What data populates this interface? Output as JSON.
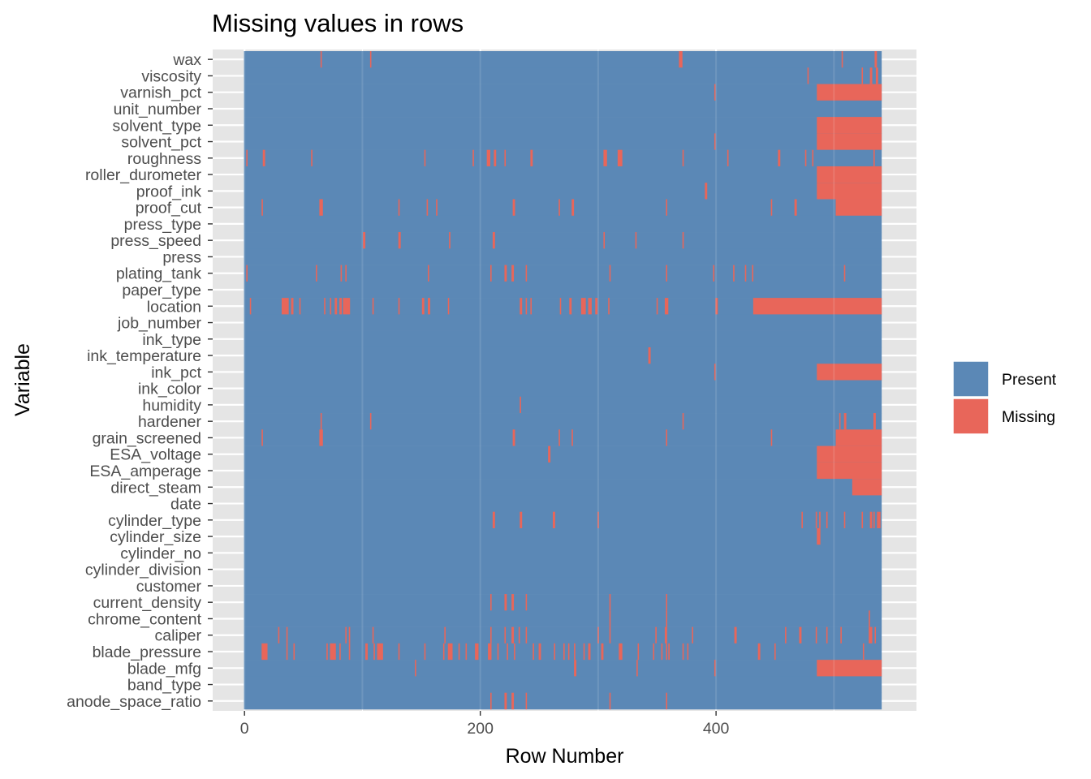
{
  "chart_data": {
    "type": "heatmap",
    "title": "Missing values in rows",
    "xlabel": "Row Number",
    "ylabel": "Variable",
    "xlim": [
      -27,
      570
    ],
    "x_ticks": [
      "0",
      "200",
      "400"
    ],
    "x_tick_values": [
      0,
      200,
      400
    ],
    "n_rows": 541,
    "grid": true,
    "legend_position": "right",
    "legend": [
      {
        "label": "Present",
        "color": "#5b88b6"
      },
      {
        "label": "Missing",
        "color": "#e8665a"
      }
    ],
    "colors": {
      "present": "#5b88b6",
      "missing": "#e8665a",
      "panel_bg": "#e5e5e5",
      "gridline": "#ffffff"
    },
    "variables": [
      "wax",
      "viscosity",
      "varnish_pct",
      "unit_number",
      "solvent_type",
      "solvent_pct",
      "roughness",
      "roller_durometer",
      "proof_ink",
      "proof_cut",
      "press_type",
      "press_speed",
      "press",
      "plating_tank",
      "paper_type",
      "location",
      "job_number",
      "ink_type",
      "ink_temperature",
      "ink_pct",
      "ink_color",
      "humidity",
      "hardener",
      "grain_screened",
      "ESA_voltage",
      "ESA_amperage",
      "direct_steam",
      "date",
      "cylinder_type",
      "cylinder_size",
      "cylinder_no",
      "cylinder_division",
      "customer",
      "current_density",
      "chrome_content",
      "caliper",
      "blade_pressure",
      "blade_mfg",
      "band_type",
      "anode_space_ratio"
    ],
    "missing": {
      "wax": [
        [
          65,
          65
        ],
        [
          107,
          107
        ],
        [
          369,
          371
        ],
        [
          507,
          507
        ],
        [
          535,
          536
        ]
      ],
      "viscosity": [
        [
          478,
          478
        ],
        [
          524,
          524
        ],
        [
          531,
          532
        ],
        [
          536,
          537
        ]
      ],
      "varnish_pct": [
        [
          399,
          399
        ],
        [
          486,
          540
        ]
      ],
      "unit_number": [],
      "solvent_type": [
        [
          486,
          540
        ]
      ],
      "solvent_pct": [
        [
          399,
          399
        ],
        [
          486,
          540
        ]
      ],
      "roughness": [
        [
          2,
          2
        ],
        [
          16,
          17
        ],
        [
          57,
          57
        ],
        [
          153,
          153
        ],
        [
          194,
          194
        ],
        [
          206,
          208
        ],
        [
          212,
          213
        ],
        [
          221,
          221
        ],
        [
          243,
          244
        ],
        [
          305,
          307
        ],
        [
          317,
          320
        ],
        [
          372,
          372
        ],
        [
          410,
          410
        ],
        [
          453,
          454
        ],
        [
          476,
          476
        ],
        [
          482,
          482
        ],
        [
          534,
          534
        ]
      ],
      "roller_durometer": [
        [
          486,
          540
        ]
      ],
      "proof_ink": [
        [
          391,
          392
        ],
        [
          486,
          540
        ]
      ],
      "proof_cut": [
        [
          15,
          15
        ],
        [
          64,
          66
        ],
        [
          131,
          131
        ],
        [
          155,
          155
        ],
        [
          163,
          163
        ],
        [
          228,
          229
        ],
        [
          267,
          267
        ],
        [
          278,
          279
        ],
        [
          358,
          358
        ],
        [
          447,
          447
        ],
        [
          467,
          468
        ],
        [
          502,
          540
        ]
      ],
      "press_type": [],
      "press_speed": [
        [
          101,
          102
        ],
        [
          131,
          132
        ],
        [
          174,
          174
        ],
        [
          211,
          212
        ],
        [
          305,
          305
        ],
        [
          332,
          332
        ],
        [
          372,
          372
        ]
      ],
      "press": [],
      "plating_tank": [
        [
          2,
          2
        ],
        [
          61,
          61
        ],
        [
          82,
          82
        ],
        [
          86,
          86
        ],
        [
          156,
          156
        ],
        [
          209,
          209
        ],
        [
          221,
          222
        ],
        [
          227,
          228
        ],
        [
          239,
          239
        ],
        [
          310,
          310
        ],
        [
          358,
          358
        ],
        [
          398,
          398
        ],
        [
          415,
          415
        ],
        [
          425,
          425
        ],
        [
          431,
          431
        ],
        [
          509,
          509
        ]
      ],
      "paper_type": [],
      "location": [
        [
          5,
          5
        ],
        [
          32,
          37
        ],
        [
          40,
          41
        ],
        [
          47,
          47
        ],
        [
          68,
          68
        ],
        [
          73,
          73
        ],
        [
          77,
          78
        ],
        [
          81,
          82
        ],
        [
          84,
          89
        ],
        [
          109,
          109
        ],
        [
          131,
          131
        ],
        [
          151,
          152
        ],
        [
          156,
          157
        ],
        [
          173,
          173
        ],
        [
          234,
          235
        ],
        [
          239,
          239
        ],
        [
          243,
          243
        ],
        [
          268,
          268
        ],
        [
          276,
          277
        ],
        [
          286,
          289
        ],
        [
          292,
          294
        ],
        [
          298,
          299
        ],
        [
          309,
          309
        ],
        [
          350,
          350
        ],
        [
          357,
          359
        ],
        [
          400,
          401
        ],
        [
          432,
          540
        ]
      ],
      "job_number": [],
      "ink_type": [],
      "ink_temperature": [
        [
          343,
          344
        ]
      ],
      "ink_pct": [
        [
          399,
          399
        ],
        [
          486,
          540
        ]
      ],
      "ink_color": [],
      "humidity": [
        [
          234,
          234
        ]
      ],
      "hardener": [
        [
          65,
          65
        ],
        [
          107,
          107
        ],
        [
          372,
          372
        ],
        [
          505,
          505
        ],
        [
          509,
          510
        ],
        [
          534,
          535
        ]
      ],
      "grain_screened": [
        [
          15,
          15
        ],
        [
          64,
          66
        ],
        [
          228,
          229
        ],
        [
          267,
          267
        ],
        [
          278,
          278
        ],
        [
          358,
          358
        ],
        [
          447,
          447
        ],
        [
          502,
          540
        ]
      ],
      "ESA_voltage": [
        [
          258,
          259
        ],
        [
          486,
          540
        ]
      ],
      "ESA_amperage": [
        [
          486,
          540
        ]
      ],
      "direct_steam": [
        [
          516,
          540
        ]
      ],
      "date": [],
      "cylinder_type": [
        [
          211,
          212
        ],
        [
          234,
          235
        ],
        [
          262,
          263
        ],
        [
          300,
          300
        ],
        [
          473,
          473
        ],
        [
          485,
          485
        ],
        [
          488,
          488
        ],
        [
          494,
          494
        ],
        [
          509,
          509
        ],
        [
          524,
          524
        ],
        [
          531,
          532
        ],
        [
          534,
          534
        ],
        [
          537,
          539
        ]
      ],
      "cylinder_size": [
        [
          486,
          488
        ]
      ],
      "cylinder_no": [],
      "cylinder_division": [],
      "customer": [],
      "current_density": [
        [
          209,
          209
        ],
        [
          221,
          222
        ],
        [
          227,
          228
        ],
        [
          239,
          239
        ],
        [
          310,
          310
        ],
        [
          358,
          358
        ]
      ],
      "chrome_content": [
        [
          310,
          310
        ],
        [
          358,
          358
        ],
        [
          530,
          530
        ]
      ],
      "caliper": [
        [
          29,
          29
        ],
        [
          36,
          36
        ],
        [
          86,
          86
        ],
        [
          89,
          89
        ],
        [
          109,
          109
        ],
        [
          170,
          170
        ],
        [
          209,
          209
        ],
        [
          221,
          221
        ],
        [
          227,
          228
        ],
        [
          233,
          233
        ],
        [
          239,
          239
        ],
        [
          300,
          300
        ],
        [
          310,
          310
        ],
        [
          349,
          349
        ],
        [
          357,
          358
        ],
        [
          380,
          380
        ],
        [
          416,
          417
        ],
        [
          459,
          459
        ],
        [
          471,
          472
        ],
        [
          485,
          485
        ],
        [
          494,
          494
        ],
        [
          506,
          506
        ],
        [
          530,
          532
        ],
        [
          535,
          535
        ]
      ],
      "blade_pressure": [
        [
          15,
          19
        ],
        [
          36,
          36
        ],
        [
          42,
          42
        ],
        [
          70,
          70
        ],
        [
          73,
          77
        ],
        [
          81,
          81
        ],
        [
          89,
          89
        ],
        [
          103,
          104
        ],
        [
          110,
          110
        ],
        [
          113,
          117
        ],
        [
          131,
          131
        ],
        [
          153,
          153
        ],
        [
          169,
          169
        ],
        [
          173,
          176
        ],
        [
          182,
          182
        ],
        [
          188,
          188
        ],
        [
          196,
          198
        ],
        [
          207,
          209
        ],
        [
          215,
          215
        ],
        [
          223,
          223
        ],
        [
          229,
          229
        ],
        [
          245,
          245
        ],
        [
          250,
          251
        ],
        [
          263,
          263
        ],
        [
          271,
          271
        ],
        [
          275,
          275
        ],
        [
          280,
          280
        ],
        [
          288,
          288
        ],
        [
          292,
          293
        ],
        [
          303,
          304
        ],
        [
          318,
          320
        ],
        [
          334,
          334
        ],
        [
          347,
          347
        ],
        [
          354,
          354
        ],
        [
          358,
          358
        ],
        [
          360,
          360
        ],
        [
          372,
          372
        ],
        [
          376,
          376
        ],
        [
          436,
          437
        ],
        [
          450,
          450
        ],
        [
          525,
          525
        ]
      ],
      "blade_mfg": [
        [
          145,
          145
        ],
        [
          280,
          281
        ],
        [
          333,
          333
        ],
        [
          399,
          399
        ],
        [
          486,
          540
        ]
      ],
      "band_type": [],
      "anode_space_ratio": [
        [
          209,
          209
        ],
        [
          221,
          222
        ],
        [
          227,
          228
        ],
        [
          239,
          239
        ],
        [
          310,
          310
        ],
        [
          358,
          358
        ]
      ]
    }
  }
}
